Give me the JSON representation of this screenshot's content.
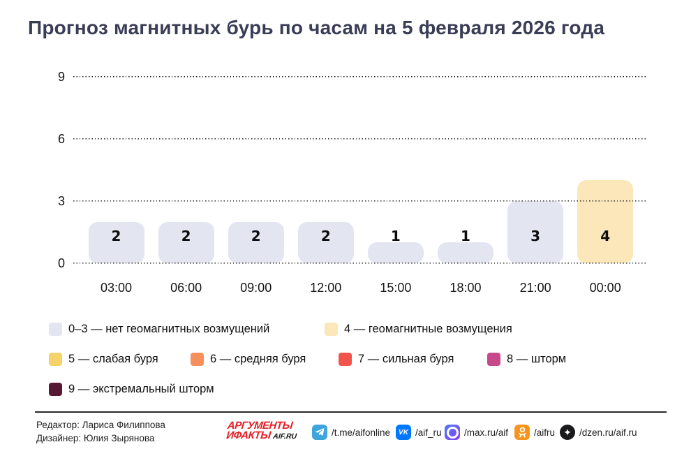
{
  "title": "Прогноз магнитных бурь по часам на 5 февраля 2026 года",
  "chart_data": {
    "type": "bar",
    "categories": [
      "03:00",
      "06:00",
      "09:00",
      "12:00",
      "15:00",
      "18:00",
      "21:00",
      "00:00"
    ],
    "values": [
      2,
      2,
      2,
      2,
      1,
      1,
      3,
      4
    ],
    "title": "Прогноз магнитных бурь по часам на 5 февраля 2026 года",
    "xlabel": "",
    "ylabel": "",
    "ylim": [
      0,
      9
    ],
    "yticks": [
      0,
      3,
      6,
      9
    ],
    "grid": "dotted horizontal",
    "legend_position": "below",
    "bar_colors": [
      "#e3e5f1",
      "#e3e5f1",
      "#e3e5f1",
      "#e3e5f1",
      "#e3e5f1",
      "#e3e5f1",
      "#e3e5f1",
      "#fbe7b9"
    ],
    "colors": {
      "calm": "#e3e5f1",
      "disturbance": "#fbe7b9",
      "weak_storm": "#f6d26a",
      "medium_storm": "#f68f5b",
      "strong_storm": "#f2534b",
      "storm": "#c8498a",
      "extreme_storm": "#571834"
    }
  },
  "legend": {
    "rows": [
      [
        {
          "color": "#e3e5f1",
          "label": "0–3 — нет геомагнитных возмущений"
        },
        {
          "color": "#fbe7b9",
          "label": "4 — геомагнитные возмущения"
        }
      ],
      [
        {
          "color": "#f6d26a",
          "label": "5 — слабая буря"
        },
        {
          "color": "#f68f5b",
          "label": "6 — средняя буря"
        },
        {
          "color": "#f2534b",
          "label": "7 — сильная буря"
        },
        {
          "color": "#c8498a",
          "label": "8 — шторм"
        }
      ],
      [
        {
          "color": "#571834",
          "label": "9 — экстремальный шторм"
        }
      ]
    ]
  },
  "footer": {
    "editor": "Редактор: Лариса Филиппова",
    "designer": "Дизайнер: Юлия Зырянова",
    "logo": {
      "line1": "АРГУМЕНТЫ",
      "line2": "ИФАКТЫ",
      "suffix": "AIF.RU",
      "color": "#e31e24"
    },
    "socials": [
      {
        "icon": "telegram-icon",
        "handle": "/t.me/aifonline",
        "color": "#3ea4dc"
      },
      {
        "icon": "vk-icon",
        "handle": "/aif_ru",
        "color": "#0077ff"
      },
      {
        "icon": "max-icon",
        "handle": "/max.ru/aif",
        "color": "#7a45f2"
      },
      {
        "icon": "ok-icon",
        "handle": "/aifru",
        "color": "#f7941d"
      },
      {
        "icon": "dzen-icon",
        "handle": "/dzen.ru/aif.ru",
        "color": "#1a1a1c"
      }
    ]
  }
}
